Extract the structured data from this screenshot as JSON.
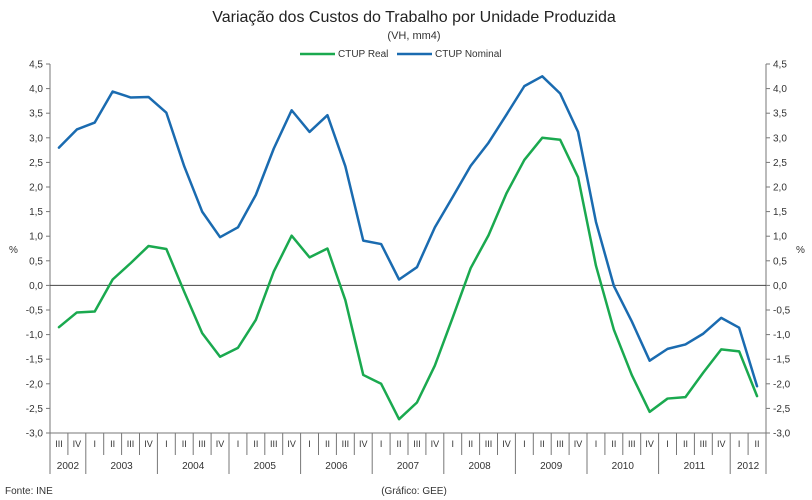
{
  "chart_data": {
    "type": "line",
    "title": "Variação dos Custos do Trabalho por Unidade Produzida",
    "subtitle": "(VH, mm4)",
    "ylabel_left": "%",
    "ylabel_right": "%",
    "ylim": [
      -3.0,
      4.5
    ],
    "yticks": [
      "4,5",
      "4,0",
      "3,5",
      "3,0",
      "2,5",
      "2,0",
      "1,5",
      "1,0",
      "0,5",
      "0,0",
      "-0,5",
      "-1,0",
      "-1,5",
      "-2,0",
      "-2,5",
      "-3,0"
    ],
    "quarter_labels": [
      "III",
      "IV",
      "I",
      "II",
      "III",
      "IV",
      "I",
      "II",
      "III",
      "IV",
      "I",
      "II",
      "III",
      "IV",
      "I",
      "II",
      "III",
      "IV",
      "I",
      "II",
      "III",
      "IV",
      "I",
      "II",
      "III",
      "IV",
      "I",
      "II",
      "III",
      "IV",
      "I",
      "II",
      "III",
      "IV",
      "I",
      "II",
      "III",
      "IV",
      "I",
      "II"
    ],
    "years": [
      {
        "label": "2002",
        "start": 0,
        "count": 2
      },
      {
        "label": "2003",
        "start": 2,
        "count": 4
      },
      {
        "label": "2004",
        "start": 6,
        "count": 4
      },
      {
        "label": "2005",
        "start": 10,
        "count": 4
      },
      {
        "label": "2006",
        "start": 14,
        "count": 4
      },
      {
        "label": "2007",
        "start": 18,
        "count": 4
      },
      {
        "label": "2008",
        "start": 22,
        "count": 4
      },
      {
        "label": "2009",
        "start": 26,
        "count": 4
      },
      {
        "label": "2010",
        "start": 30,
        "count": 4
      },
      {
        "label": "2011",
        "start": 34,
        "count": 4
      },
      {
        "label": "2012",
        "start": 38,
        "count": 2
      }
    ],
    "series": [
      {
        "name": "CTUP Real",
        "color": "#1aa94f",
        "values": [
          -0.85,
          -0.55,
          -0.53,
          0.12,
          0.45,
          0.8,
          0.74,
          -0.13,
          -0.97,
          -1.45,
          -1.27,
          -0.7,
          0.28,
          1.01,
          0.57,
          0.75,
          -0.3,
          -1.82,
          -2.0,
          -2.72,
          -2.38,
          -1.63,
          -0.65,
          0.35,
          1.02,
          1.87,
          2.55,
          3.0,
          2.96,
          2.2,
          0.4,
          -0.9,
          -1.82,
          -2.57,
          -2.3,
          -2.27,
          -1.77,
          -1.3,
          -1.34,
          -2.25
        ]
      },
      {
        "name": "CTUP Nominal",
        "color": "#1a6bb0",
        "values": [
          2.8,
          3.17,
          3.31,
          3.94,
          3.82,
          3.83,
          3.51,
          2.42,
          1.5,
          0.98,
          1.18,
          1.84,
          2.78,
          3.56,
          3.12,
          3.46,
          2.42,
          0.91,
          0.84,
          0.12,
          0.37,
          1.18,
          1.8,
          2.43,
          2.9,
          3.47,
          4.05,
          4.25,
          3.9,
          3.12,
          1.29,
          -0.01,
          -0.73,
          -1.53,
          -1.29,
          -1.2,
          -0.98,
          -0.66,
          -0.86,
          -2.05
        ]
      }
    ]
  },
  "footer": {
    "source": "Fonte: INE",
    "credit": "(Gráfico: GEE)"
  }
}
